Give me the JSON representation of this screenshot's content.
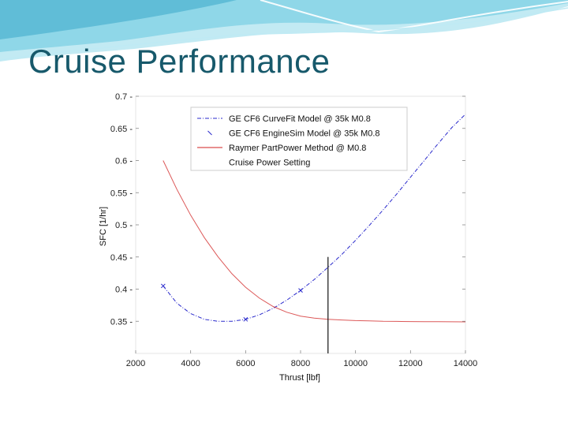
{
  "slide": {
    "title": "Cruise Performance"
  },
  "colors": {
    "title": "#17596b",
    "curvefit": "#2a2acc",
    "enginesim": "#2a2acc",
    "raymer": "#d02020",
    "cruise": "#111111"
  },
  "chart_data": {
    "type": "line",
    "xlabel": "Thrust [lbf]",
    "ylabel": "SFC [1/hr]",
    "xlim": [
      2000,
      14000
    ],
    "ylim": [
      0.3,
      0.7
    ],
    "x_ticks": [
      2000,
      4000,
      6000,
      8000,
      10000,
      12000,
      14000
    ],
    "y_ticks": [
      0.35,
      0.4,
      0.45,
      0.5,
      0.55,
      0.6,
      0.65,
      0.7
    ],
    "grid": false,
    "legend_position": "top-right",
    "series": [
      {
        "name": "GE CF6 CurveFit Model @ 35k M0.8",
        "style": "dash-dot",
        "x": [
          3000,
          3500,
          4000,
          4500,
          5000,
          5500,
          6000,
          6500,
          7000,
          7500,
          8000,
          8500,
          9000,
          9500,
          10000,
          10500,
          11000,
          11500,
          12000,
          12500,
          13000,
          13500,
          14000
        ],
        "y": [
          0.405,
          0.378,
          0.362,
          0.353,
          0.35,
          0.35,
          0.353,
          0.36,
          0.37,
          0.383,
          0.398,
          0.415,
          0.434,
          0.454,
          0.476,
          0.499,
          0.523,
          0.548,
          0.574,
          0.6,
          0.626,
          0.651,
          0.672
        ]
      },
      {
        "name": "GE CF6 EngineSim Model @ 35k M0.8",
        "style": "markers",
        "x": [
          3000,
          6000,
          8000
        ],
        "y": [
          0.405,
          0.353,
          0.398
        ]
      },
      {
        "name": "Raymer PartPower Method @ M0.8",
        "style": "solid",
        "x": [
          3000,
          3500,
          4000,
          4500,
          5000,
          5500,
          6000,
          6500,
          7000,
          7500,
          8000,
          8500,
          9000,
          9500,
          10000,
          10500,
          11000,
          11500,
          12000,
          12500,
          13000,
          13500,
          14000
        ],
        "y": [
          0.6,
          0.555,
          0.515,
          0.48,
          0.45,
          0.424,
          0.403,
          0.386,
          0.373,
          0.364,
          0.358,
          0.355,
          0.353,
          0.352,
          0.351,
          0.3505,
          0.35,
          0.3498,
          0.3496,
          0.3494,
          0.3493,
          0.3492,
          0.3491
        ]
      },
      {
        "name": "Cruise Power Setting",
        "style": "vertical",
        "x": [
          9000,
          9000
        ],
        "y": [
          0.3,
          0.45
        ]
      }
    ]
  }
}
